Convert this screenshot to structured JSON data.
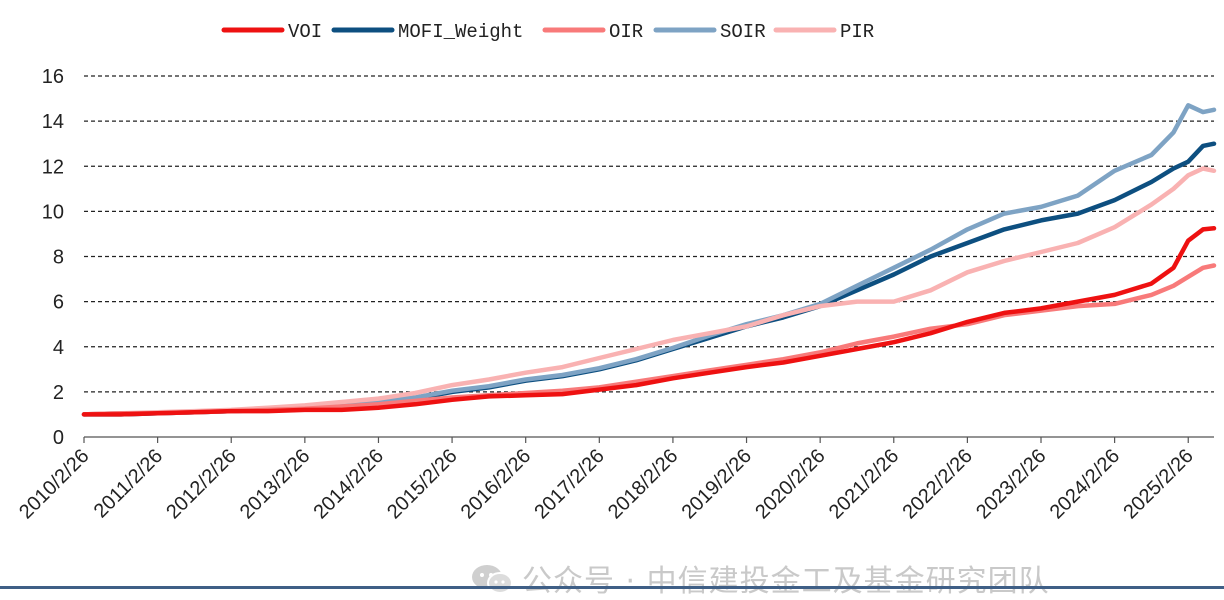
{
  "chart_data": {
    "type": "line",
    "title": "",
    "xlabel": "",
    "ylabel": "",
    "ylim": [
      0,
      16
    ],
    "yticks": [
      "0",
      "2",
      "4",
      "6",
      "8",
      "10",
      "12",
      "14",
      "16"
    ],
    "xticks": [
      "2010/2/26",
      "2011/2/26",
      "2012/2/26",
      "2013/2/26",
      "2014/2/26",
      "2015/2/26",
      "2016/2/26",
      "2017/2/26",
      "2018/2/26",
      "2019/2/26",
      "2020/2/26",
      "2021/2/26",
      "2022/2/26",
      "2023/2/26",
      "2024/2/26",
      "2025/2/26"
    ],
    "x_range": [
      2010.0,
      2025.35
    ],
    "grid": "horizontal-dashed",
    "legend_position": "top",
    "series": [
      {
        "name": "VOI",
        "color": "#ee1111",
        "x": [
          2010.0,
          2010.5,
          2011.0,
          2011.5,
          2012.0,
          2012.5,
          2013.0,
          2013.5,
          2014.0,
          2014.5,
          2015.0,
          2015.5,
          2016.0,
          2016.5,
          2017.0,
          2017.5,
          2018.0,
          2018.5,
          2019.0,
          2019.5,
          2020.0,
          2020.5,
          2021.0,
          2021.5,
          2022.0,
          2022.5,
          2023.0,
          2023.5,
          2024.0,
          2024.5,
          2024.8,
          2025.0,
          2025.2,
          2025.35
        ],
        "y": [
          1.0,
          1.0,
          1.05,
          1.1,
          1.15,
          1.15,
          1.2,
          1.2,
          1.3,
          1.45,
          1.65,
          1.8,
          1.85,
          1.9,
          2.1,
          2.3,
          2.6,
          2.85,
          3.1,
          3.3,
          3.6,
          3.9,
          4.2,
          4.6,
          5.1,
          5.5,
          5.7,
          6.0,
          6.3,
          6.8,
          7.5,
          8.7,
          9.2,
          9.25
        ]
      },
      {
        "name": "MOFI_Weight",
        "color": "#0d4f80",
        "x": [
          2010.0,
          2010.5,
          2011.0,
          2011.5,
          2012.0,
          2012.5,
          2013.0,
          2013.5,
          2014.0,
          2014.5,
          2015.0,
          2015.5,
          2016.0,
          2016.5,
          2017.0,
          2017.5,
          2018.0,
          2018.5,
          2019.0,
          2019.5,
          2020.0,
          2020.5,
          2021.0,
          2021.5,
          2022.0,
          2022.5,
          2023.0,
          2023.5,
          2024.0,
          2024.5,
          2024.8,
          2025.0,
          2025.2,
          2025.35
        ],
        "y": [
          1.0,
          1.0,
          1.05,
          1.1,
          1.15,
          1.2,
          1.3,
          1.4,
          1.5,
          1.7,
          2.0,
          2.2,
          2.5,
          2.7,
          3.0,
          3.4,
          3.9,
          4.4,
          4.9,
          5.3,
          5.8,
          6.5,
          7.2,
          8.0,
          8.6,
          9.2,
          9.6,
          9.9,
          10.5,
          11.3,
          11.9,
          12.2,
          12.9,
          13.0
        ]
      },
      {
        "name": "OIR",
        "color": "#f87a7a",
        "x": [
          2010.0,
          2010.5,
          2011.0,
          2011.5,
          2012.0,
          2012.5,
          2013.0,
          2013.5,
          2014.0,
          2014.5,
          2015.0,
          2015.5,
          2016.0,
          2016.5,
          2017.0,
          2017.5,
          2018.0,
          2018.5,
          2019.0,
          2019.5,
          2020.0,
          2020.5,
          2021.0,
          2021.5,
          2022.0,
          2022.5,
          2023.0,
          2023.5,
          2024.0,
          2024.5,
          2024.8,
          2025.0,
          2025.2,
          2025.35
        ],
        "y": [
          1.0,
          1.05,
          1.05,
          1.1,
          1.15,
          1.2,
          1.25,
          1.35,
          1.45,
          1.6,
          1.75,
          1.85,
          1.95,
          2.05,
          2.2,
          2.45,
          2.7,
          2.95,
          3.2,
          3.45,
          3.75,
          4.15,
          4.45,
          4.8,
          5.0,
          5.4,
          5.6,
          5.8,
          5.9,
          6.3,
          6.7,
          7.1,
          7.5,
          7.6
        ]
      },
      {
        "name": "SOIR",
        "color": "#7ea3c4",
        "x": [
          2010.0,
          2010.5,
          2011.0,
          2011.5,
          2012.0,
          2012.5,
          2013.0,
          2013.5,
          2014.0,
          2014.5,
          2015.0,
          2015.5,
          2016.0,
          2016.5,
          2017.0,
          2017.5,
          2018.0,
          2018.5,
          2019.0,
          2019.5,
          2020.0,
          2020.5,
          2021.0,
          2021.5,
          2022.0,
          2022.5,
          2023.0,
          2023.5,
          2024.0,
          2024.5,
          2024.8,
          2025.0,
          2025.2,
          2025.35
        ],
        "y": [
          1.0,
          1.05,
          1.05,
          1.1,
          1.15,
          1.2,
          1.3,
          1.4,
          1.55,
          1.75,
          2.05,
          2.25,
          2.55,
          2.75,
          3.05,
          3.45,
          3.95,
          4.5,
          5.0,
          5.4,
          5.9,
          6.7,
          7.5,
          8.3,
          9.2,
          9.9,
          10.2,
          10.7,
          11.8,
          12.5,
          13.5,
          14.7,
          14.4,
          14.5
        ]
      },
      {
        "name": "PIR",
        "color": "#f9b2b2",
        "x": [
          2010.0,
          2010.5,
          2011.0,
          2011.5,
          2012.0,
          2012.5,
          2013.0,
          2013.5,
          2014.0,
          2014.5,
          2015.0,
          2015.5,
          2016.0,
          2016.5,
          2017.0,
          2017.5,
          2018.0,
          2018.5,
          2019.0,
          2019.5,
          2020.0,
          2020.5,
          2021.0,
          2021.5,
          2022.0,
          2022.5,
          2023.0,
          2023.5,
          2024.0,
          2024.5,
          2024.8,
          2025.0,
          2025.2,
          2025.35
        ],
        "y": [
          1.0,
          1.05,
          1.1,
          1.15,
          1.2,
          1.3,
          1.4,
          1.55,
          1.7,
          1.95,
          2.3,
          2.55,
          2.85,
          3.1,
          3.5,
          3.9,
          4.3,
          4.6,
          4.9,
          5.4,
          5.8,
          6.0,
          6.0,
          6.5,
          7.3,
          7.8,
          8.2,
          8.6,
          9.3,
          10.3,
          11.0,
          11.6,
          11.9,
          11.8
        ]
      }
    ]
  },
  "watermark": {
    "icon": "wechat-icon",
    "text": "公众号 · 中信建投金工及基金研究团队"
  }
}
